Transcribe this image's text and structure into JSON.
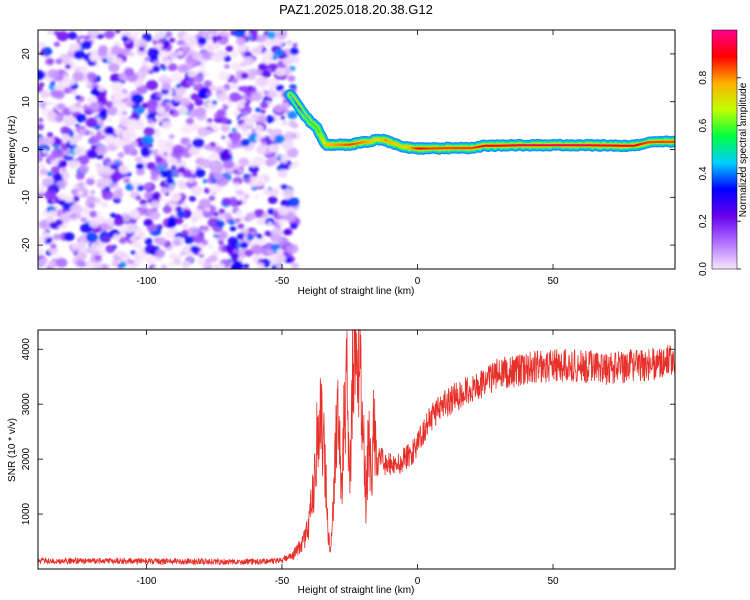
{
  "title": "PAZ1.2025.018.20.38.G12",
  "chart_data": [
    {
      "type": "heatmap",
      "xlabel": "Height of straight line (km)",
      "ylabel": "Frequency (Hz)",
      "xlim": [
        -140,
        95
      ],
      "ylim": [
        -25,
        25
      ],
      "xticks": [
        -100,
        -50,
        0,
        50
      ],
      "yticks": [
        -20,
        -10,
        0,
        10,
        20
      ],
      "colorbar": {
        "label": "Normalized spectral amplitude",
        "range": [
          0,
          1
        ],
        "ticks": [
          "0.0",
          "0.2",
          "0.4",
          "0.6",
          "0.8"
        ],
        "colormap": [
          "#f8e6fc",
          "#b070ff",
          "#6600ee",
          "#0000ff",
          "#00d0ff",
          "#00ff40",
          "#c0ff00",
          "#ffb000",
          "#ff0000",
          "#ff0090"
        ]
      },
      "noise_region_km": [
        -140,
        -45
      ],
      "ridge_km": [
        -47,
        -44,
        -40,
        -37,
        -34,
        -30,
        -25,
        -20,
        -15,
        -12,
        -10,
        -5,
        0,
        5,
        10,
        20,
        25,
        30,
        40,
        50,
        60,
        75,
        80,
        85,
        90,
        95
      ],
      "ridge_hz": [
        11.5,
        9,
        6,
        4.5,
        1,
        1,
        1,
        1.5,
        2,
        2,
        1.5,
        0.5,
        0.2,
        0.2,
        0.3,
        0.3,
        0.8,
        0.8,
        0.9,
        0.9,
        0.9,
        0.8,
        0.8,
        1.5,
        1.6,
        1.6
      ],
      "ridge_amplitude": [
        0.45,
        0.4,
        0.5,
        0.55,
        0.75,
        0.8,
        0.85,
        0.8,
        0.7,
        0.8,
        0.75,
        0.7,
        0.9,
        0.85,
        0.85,
        0.85,
        0.9,
        0.9,
        0.95,
        0.95,
        0.95,
        0.9,
        0.9,
        0.85,
        0.85,
        0.85
      ]
    },
    {
      "type": "line",
      "xlabel": "Height of straight line (km)",
      "ylabel": "SNR (10 * v/v)",
      "xlim": [
        -140,
        95
      ],
      "ylim": [
        0,
        4350
      ],
      "xticks": [
        -100,
        -50,
        0,
        50
      ],
      "yticks": [
        1000,
        2000,
        3000,
        4000
      ],
      "series": [
        {
          "color": "#e8302a",
          "x": [
            -140,
            -120,
            -100,
            -80,
            -60,
            -50,
            -46,
            -42,
            -40,
            -38,
            -36,
            -34,
            -33,
            -32,
            -31,
            -30,
            -29,
            -28,
            -27,
            -26,
            -25,
            -24,
            -23,
            -22,
            -21,
            -20,
            -19,
            -18,
            -17,
            -16,
            -15,
            -14,
            -12,
            -10,
            -8,
            -5,
            -2,
            0,
            5,
            10,
            20,
            30,
            40,
            50,
            60,
            70,
            80,
            90,
            95
          ],
          "y": [
            150,
            150,
            140,
            135,
            130,
            150,
            250,
            500,
            800,
            1600,
            3200,
            1800,
            600,
            300,
            1200,
            2400,
            2700,
            1500,
            2800,
            3300,
            1300,
            3600,
            3900,
            4200,
            3700,
            2500,
            1200,
            2400,
            1700,
            2700,
            1800,
            2100,
            1900,
            1900,
            1900,
            2000,
            2100,
            2300,
            2750,
            3000,
            3300,
            3550,
            3650,
            3700,
            3700,
            3650,
            3700,
            3750,
            3800
          ]
        }
      ]
    }
  ]
}
